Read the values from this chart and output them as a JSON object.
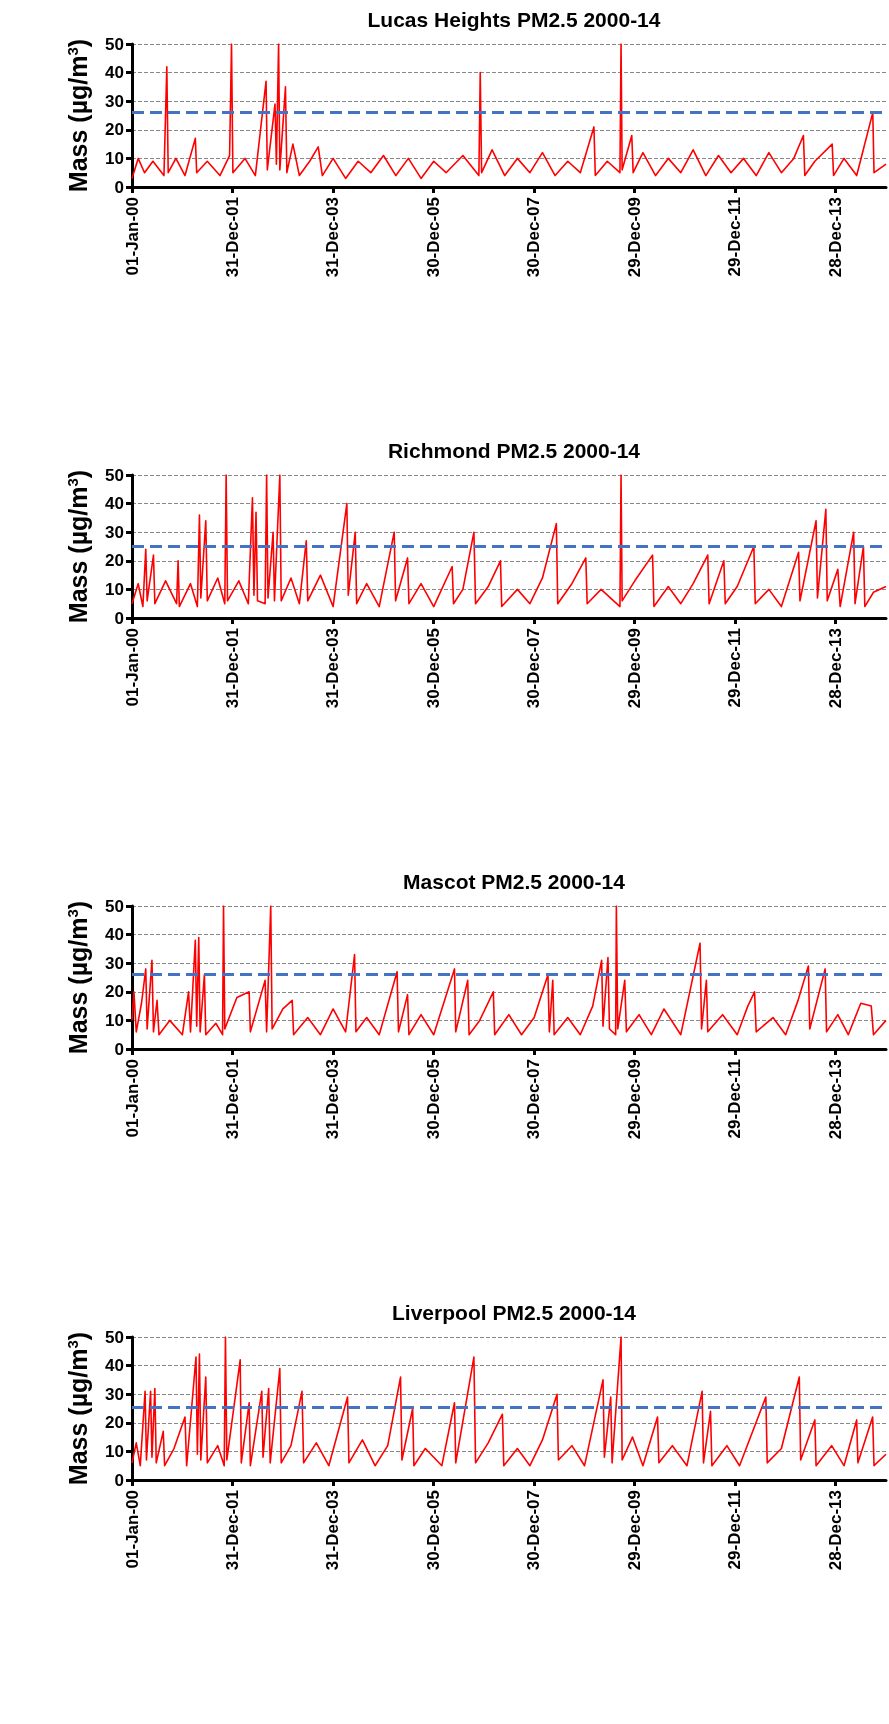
{
  "chart_data": [
    {
      "type": "line",
      "title": "Lucas Heights PM2.5 2000-14",
      "ylabel": "Mass (µg/m$^{3}$)",
      "color": "#ff0000",
      "marker": "none",
      "grid": "y",
      "ylim": [
        0,
        50
      ],
      "yticks": [
        0,
        10,
        20,
        30,
        40,
        50
      ],
      "xlim": [
        "2000-01-01",
        "2014-12-31"
      ],
      "xticks": [
        {
          "value": "2000-01-01",
          "label": "01-Jan-00"
        },
        {
          "value": "2001-12-31",
          "label": "31-Dec-01"
        },
        {
          "value": "2003-12-31",
          "label": "31-Dec-03"
        },
        {
          "value": "2005-12-30",
          "label": "30-Dec-05"
        },
        {
          "value": "2007-12-30",
          "label": "30-Dec-07"
        },
        {
          "value": "2009-12-29",
          "label": "29-Dec-09"
        },
        {
          "value": "2011-12-29",
          "label": "29-Dec-11"
        },
        {
          "value": "2013-12-28",
          "label": "28-Dec-13"
        }
      ],
      "ref_lines": [
        {
          "axis": "y",
          "value": 26,
          "color": "#4472c4",
          "line_style": "dashed"
        }
      ],
      "x": [
        "2000-01-01",
        "2000-02-15",
        "2000-04-01",
        "2000-06-01",
        "2000-08-20",
        "2000-09-10",
        "2000-09-20",
        "2000-11-15",
        "2001-01-20",
        "2001-04-05",
        "2001-04-15",
        "2001-07-01",
        "2001-10-01",
        "2001-12-10",
        "2001-12-24",
        "2002-01-03",
        "2002-04-01",
        "2002-06-15",
        "2002-09-01",
        "2002-09-10",
        "2002-11-05",
        "2002-11-15",
        "2002-12-01",
        "2002-12-10",
        "2003-01-20",
        "2003-01-30",
        "2003-03-15",
        "2003-05-01",
        "2003-07-15",
        "2003-09-15",
        "2003-10-15",
        "2004-01-01",
        "2004-04-01",
        "2004-07-01",
        "2004-10-01",
        "2005-01-01",
        "2005-04-01",
        "2005-07-01",
        "2005-10-01",
        "2006-01-01",
        "2006-04-01",
        "2006-08-01",
        "2006-11-25",
        "2006-12-05",
        "2006-12-15",
        "2007-03-01",
        "2007-06-01",
        "2007-09-01",
        "2007-12-01",
        "2008-03-01",
        "2008-06-01",
        "2008-09-01",
        "2008-12-01",
        "2009-03-10",
        "2009-03-20",
        "2009-06-15",
        "2009-09-15",
        "2009-09-23",
        "2009-10-01",
        "2009-12-10",
        "2009-12-20",
        "2010-03-01",
        "2010-06-01",
        "2010-09-01",
        "2010-12-01",
        "2011-03-01",
        "2011-06-01",
        "2011-09-01",
        "2011-12-01",
        "2012-03-01",
        "2012-06-01",
        "2012-09-01",
        "2012-12-01",
        "2013-03-01",
        "2013-05-10",
        "2013-05-20",
        "2013-08-01",
        "2013-12-05",
        "2013-12-15",
        "2014-03-01",
        "2014-06-01",
        "2014-09-26",
        "2014-10-05",
        "2014-12-31"
      ],
      "values": [
        3,
        10,
        5,
        9,
        4,
        42,
        5,
        10,
        4,
        17,
        5,
        9,
        4,
        11,
        50,
        5,
        10,
        4,
        37,
        6,
        29,
        8,
        50,
        6,
        35,
        5,
        15,
        4,
        9,
        14,
        4,
        10,
        3,
        9,
        5,
        11,
        4,
        10,
        3,
        9,
        5,
        11,
        4,
        40,
        5,
        13,
        4,
        10,
        5,
        12,
        4,
        9,
        5,
        21,
        4,
        9,
        5,
        50,
        6,
        18,
        5,
        12,
        4,
        10,
        5,
        13,
        4,
        11,
        5,
        10,
        4,
        12,
        5,
        10,
        18,
        4,
        9,
        15,
        4,
        10,
        4,
        26,
        5,
        8
      ]
    },
    {
      "type": "line",
      "title": "Richmond PM2.5 2000-14",
      "ylabel": "Mass (µg/m$^{3}$)",
      "color": "#ff0000",
      "marker": "none",
      "grid": "y",
      "ylim": [
        0,
        50
      ],
      "yticks": [
        0,
        10,
        20,
        30,
        40,
        50
      ],
      "xlim": [
        "2000-01-01",
        "2014-12-31"
      ],
      "xticks": [
        {
          "value": "2000-01-01",
          "label": "01-Jan-00"
        },
        {
          "value": "2001-12-31",
          "label": "31-Dec-01"
        },
        {
          "value": "2003-12-31",
          "label": "31-Dec-03"
        },
        {
          "value": "2005-12-30",
          "label": "30-Dec-05"
        },
        {
          "value": "2007-12-30",
          "label": "30-Dec-07"
        },
        {
          "value": "2009-12-29",
          "label": "29-Dec-09"
        },
        {
          "value": "2011-12-29",
          "label": "29-Dec-11"
        },
        {
          "value": "2013-12-28",
          "label": "28-Dec-13"
        }
      ],
      "ref_lines": [
        {
          "axis": "y",
          "value": 25,
          "color": "#4472c4",
          "line_style": "dashed"
        }
      ],
      "x": [
        "2000-01-01",
        "2000-02-15",
        "2000-03-20",
        "2000-04-10",
        "2000-04-20",
        "2000-06-05",
        "2000-06-15",
        "2000-09-01",
        "2000-11-20",
        "2000-12-01",
        "2000-12-10",
        "2001-03-01",
        "2001-04-20",
        "2001-05-05",
        "2001-05-15",
        "2001-06-20",
        "2001-07-01",
        "2001-09-15",
        "2001-11-05",
        "2001-11-15",
        "2001-11-25",
        "2002-02-15",
        "2002-04-25",
        "2002-05-25",
        "2002-06-05",
        "2002-06-20",
        "2002-07-01",
        "2002-08-25",
        "2002-09-05",
        "2002-09-15",
        "2002-10-22",
        "2002-11-01",
        "2002-12-10",
        "2002-12-20",
        "2003-03-01",
        "2003-05-01",
        "2003-06-20",
        "2003-07-01",
        "2003-10-01",
        "2004-01-01",
        "2004-04-10",
        "2004-04-20",
        "2004-06-10",
        "2004-06-20",
        "2004-09-01",
        "2004-12-01",
        "2005-03-20",
        "2005-03-30",
        "2005-06-25",
        "2005-07-05",
        "2005-10-01",
        "2006-01-01",
        "2006-05-15",
        "2006-05-25",
        "2006-08-01",
        "2006-10-20",
        "2006-11-01",
        "2007-02-01",
        "2007-05-01",
        "2007-05-10",
        "2007-09-01",
        "2007-12-01",
        "2008-03-01",
        "2008-06-10",
        "2008-06-20",
        "2008-10-01",
        "2009-01-10",
        "2009-01-20",
        "2009-05-01",
        "2009-09-15",
        "2009-09-23",
        "2009-10-01",
        "2010-01-01",
        "2010-05-10",
        "2010-05-20",
        "2010-09-01",
        "2010-12-01",
        "2011-03-01",
        "2011-06-15",
        "2011-06-25",
        "2011-10-10",
        "2011-10-20",
        "2012-01-15",
        "2012-05-15",
        "2012-05-25",
        "2012-09-01",
        "2012-12-01",
        "2013-04-05",
        "2013-04-15",
        "2013-08-10",
        "2013-08-20",
        "2013-10-20",
        "2013-10-30",
        "2014-01-15",
        "2014-02-01",
        "2014-05-10",
        "2014-05-20",
        "2014-07-20",
        "2014-07-30",
        "2014-10-01",
        "2014-12-31"
      ],
      "values": [
        5,
        12,
        4,
        24,
        6,
        22,
        5,
        13,
        5,
        20,
        4,
        12,
        4,
        36,
        7,
        34,
        6,
        14,
        5,
        50,
        6,
        13,
        5,
        42,
        8,
        37,
        6,
        5,
        50,
        7,
        30,
        6,
        50,
        6,
        14,
        5,
        27,
        6,
        15,
        4,
        40,
        8,
        30,
        5,
        12,
        4,
        30,
        6,
        21,
        5,
        12,
        4,
        18,
        5,
        10,
        30,
        5,
        11,
        20,
        4,
        10,
        5,
        14,
        33,
        5,
        12,
        21,
        5,
        10,
        4,
        50,
        6,
        13,
        22,
        4,
        11,
        5,
        12,
        22,
        5,
        20,
        5,
        11,
        25,
        5,
        10,
        4,
        23,
        6,
        34,
        7,
        38,
        6,
        17,
        4,
        30,
        5,
        25,
        4,
        9,
        11
      ]
    },
    {
      "type": "line",
      "title": "Mascot PM2.5 2000-14",
      "ylabel": "Mass (µg/m$^{3}$)",
      "color": "#ff0000",
      "marker": "none",
      "grid": "y",
      "ylim": [
        0,
        50
      ],
      "yticks": [
        0,
        10,
        20,
        30,
        40,
        50
      ],
      "xlim": [
        "2000-01-01",
        "2014-12-31"
      ],
      "xticks": [
        {
          "value": "2000-01-01",
          "label": "01-Jan-00"
        },
        {
          "value": "2001-12-31",
          "label": "31-Dec-01"
        },
        {
          "value": "2003-12-31",
          "label": "31-Dec-03"
        },
        {
          "value": "2005-12-30",
          "label": "30-Dec-05"
        },
        {
          "value": "2007-12-30",
          "label": "30-Dec-07"
        },
        {
          "value": "2009-12-29",
          "label": "29-Dec-09"
        },
        {
          "value": "2011-12-29",
          "label": "29-Dec-11"
        },
        {
          "value": "2013-12-28",
          "label": "28-Dec-13"
        }
      ],
      "ref_lines": [
        {
          "axis": "y",
          "value": 26,
          "color": "#4472c4",
          "line_style": "dashed"
        }
      ],
      "x": [
        "2000-01-01",
        "2000-01-15",
        "2000-02-01",
        "2000-03-10",
        "2000-04-10",
        "2000-04-20",
        "2000-05-25",
        "2000-06-05",
        "2000-07-01",
        "2000-07-15",
        "2000-10-01",
        "2001-01-01",
        "2001-02-15",
        "2001-03-01",
        "2001-04-05",
        "2001-04-15",
        "2001-04-30",
        "2001-05-10",
        "2001-06-10",
        "2001-06-20",
        "2001-09-01",
        "2001-10-20",
        "2001-10-27",
        "2001-11-05",
        "2002-02-01",
        "2002-05-01",
        "2002-05-10",
        "2002-08-25",
        "2002-09-05",
        "2002-10-05",
        "2002-10-15",
        "2003-01-01",
        "2003-03-10",
        "2003-03-20",
        "2003-07-01",
        "2003-10-01",
        "2004-01-01",
        "2004-04-01",
        "2004-06-05",
        "2004-06-15",
        "2004-09-01",
        "2004-12-01",
        "2005-04-10",
        "2005-04-20",
        "2005-06-25",
        "2005-07-05",
        "2005-10-01",
        "2006-01-01",
        "2006-06-01",
        "2006-06-10",
        "2006-09-05",
        "2006-09-15",
        "2006-12-01",
        "2007-03-10",
        "2007-03-20",
        "2007-07-01",
        "2007-10-01",
        "2008-01-01",
        "2008-04-10",
        "2008-04-20",
        "2008-05-15",
        "2008-05-25",
        "2008-09-01",
        "2008-12-01",
        "2009-03-01",
        "2009-05-05",
        "2009-05-15",
        "2009-06-20",
        "2009-07-01",
        "2009-08-15",
        "2009-08-20",
        "2009-08-30",
        "2009-10-20",
        "2009-11-01",
        "2010-02-01",
        "2010-05-01",
        "2010-08-01",
        "2010-12-01",
        "2011-04-20",
        "2011-05-01",
        "2011-06-05",
        "2011-06-15",
        "2011-10-01",
        "2012-01-15",
        "2012-04-01",
        "2012-05-20",
        "2012-06-01",
        "2012-10-01",
        "2013-01-01",
        "2013-04-01",
        "2013-06-15",
        "2013-06-25",
        "2013-10-15",
        "2013-10-25",
        "2014-01-15",
        "2014-04-01",
        "2014-07-01",
        "2014-09-15",
        "2014-10-01",
        "2014-12-31"
      ],
      "values": [
        10,
        20,
        6,
        16,
        28,
        7,
        31,
        6,
        17,
        5,
        10,
        5,
        20,
        6,
        38,
        8,
        39,
        6,
        26,
        5,
        9,
        5,
        50,
        7,
        18,
        20,
        6,
        24,
        6,
        50,
        7,
        14,
        17,
        5,
        11,
        5,
        14,
        6,
        33,
        6,
        11,
        5,
        27,
        6,
        19,
        5,
        12,
        5,
        28,
        6,
        24,
        5,
        10,
        20,
        5,
        12,
        5,
        11,
        26,
        6,
        24,
        5,
        11,
        5,
        15,
        31,
        8,
        32,
        7,
        5,
        50,
        7,
        24,
        6,
        12,
        5,
        14,
        5,
        37,
        7,
        24,
        6,
        12,
        5,
        15,
        20,
        6,
        11,
        5,
        17,
        29,
        7,
        28,
        6,
        12,
        5,
        16,
        15,
        5,
        10
      ]
    },
    {
      "type": "line",
      "title": "Liverpool PM2.5 2000-14",
      "ylabel": "Mass (µg/m$^{3}$)",
      "color": "#ff0000",
      "marker": "none",
      "grid": "y",
      "ylim": [
        0,
        50
      ],
      "yticks": [
        0,
        10,
        20,
        30,
        40,
        50
      ],
      "xlim": [
        "2000-01-01",
        "2014-12-31"
      ],
      "xticks": [
        {
          "value": "2000-01-01",
          "label": "01-Jan-00"
        },
        {
          "value": "2001-12-31",
          "label": "31-Dec-01"
        },
        {
          "value": "2003-12-31",
          "label": "31-Dec-03"
        },
        {
          "value": "2005-12-30",
          "label": "30-Dec-05"
        },
        {
          "value": "2007-12-30",
          "label": "30-Dec-07"
        },
        {
          "value": "2009-12-29",
          "label": "29-Dec-09"
        },
        {
          "value": "2011-12-29",
          "label": "29-Dec-11"
        },
        {
          "value": "2013-12-28",
          "label": "28-Dec-13"
        }
      ],
      "ref_lines": [
        {
          "axis": "y",
          "value": 25.5,
          "color": "#4472c4",
          "line_style": "dashed"
        }
      ],
      "x": [
        "2000-01-01",
        "2000-02-01",
        "2000-03-01",
        "2000-04-05",
        "2000-04-15",
        "2000-05-15",
        "2000-05-25",
        "2000-06-15",
        "2000-06-25",
        "2000-08-15",
        "2000-08-25",
        "2000-11-01",
        "2001-01-20",
        "2001-02-01",
        "2001-04-10",
        "2001-04-20",
        "2001-05-05",
        "2001-05-15",
        "2001-06-20",
        "2001-07-01",
        "2001-09-15",
        "2001-11-01",
        "2001-11-10",
        "2001-11-20",
        "2002-02-25",
        "2002-03-05",
        "2002-05-01",
        "2002-05-10",
        "2002-08-01",
        "2002-08-10",
        "2002-09-20",
        "2002-10-01",
        "2002-12-10",
        "2002-12-20",
        "2003-03-01",
        "2003-05-20",
        "2003-06-01",
        "2003-09-01",
        "2003-12-01",
        "2004-04-15",
        "2004-04-25",
        "2004-08-01",
        "2004-11-01",
        "2005-02-01",
        "2005-05-05",
        "2005-05-15",
        "2005-08-01",
        "2005-08-10",
        "2005-11-01",
        "2006-03-01",
        "2006-06-01",
        "2006-06-10",
        "2006-10-20",
        "2006-11-01",
        "2007-02-01",
        "2007-05-15",
        "2007-05-25",
        "2007-09-01",
        "2007-12-01",
        "2008-03-01",
        "2008-06-15",
        "2008-06-25",
        "2008-10-01",
        "2009-01-01",
        "2009-05-15",
        "2009-05-25",
        "2009-07-10",
        "2009-07-20",
        "2009-09-23",
        "2009-10-01",
        "2009-12-15",
        "2010-03-01",
        "2010-06-15",
        "2010-06-25",
        "2010-10-01",
        "2011-01-15",
        "2011-05-05",
        "2011-05-15",
        "2011-07-05",
        "2011-07-15",
        "2011-11-01",
        "2012-02-01",
        "2012-08-10",
        "2012-08-20",
        "2012-12-01",
        "2013-04-10",
        "2013-04-20",
        "2013-08-01",
        "2013-08-10",
        "2013-12-01",
        "2014-03-01",
        "2014-06-01",
        "2014-06-10",
        "2014-09-25",
        "2014-10-05",
        "2014-12-31"
      ],
      "values": [
        6,
        13,
        5,
        31,
        7,
        31,
        8,
        32,
        6,
        17,
        5,
        11,
        22,
        5,
        43,
        9,
        44,
        7,
        36,
        6,
        12,
        5,
        50,
        7,
        42,
        6,
        27,
        5,
        31,
        8,
        32,
        6,
        39,
        6,
        12,
        31,
        6,
        13,
        5,
        29,
        6,
        14,
        5,
        12,
        36,
        7,
        25,
        5,
        11,
        5,
        27,
        6,
        43,
        6,
        13,
        23,
        5,
        11,
        5,
        14,
        30,
        7,
        12,
        5,
        35,
        8,
        29,
        6,
        50,
        7,
        15,
        5,
        22,
        6,
        12,
        5,
        31,
        6,
        24,
        5,
        12,
        5,
        29,
        6,
        11,
        36,
        7,
        21,
        5,
        12,
        5,
        21,
        6,
        22,
        5,
        9
      ]
    }
  ]
}
